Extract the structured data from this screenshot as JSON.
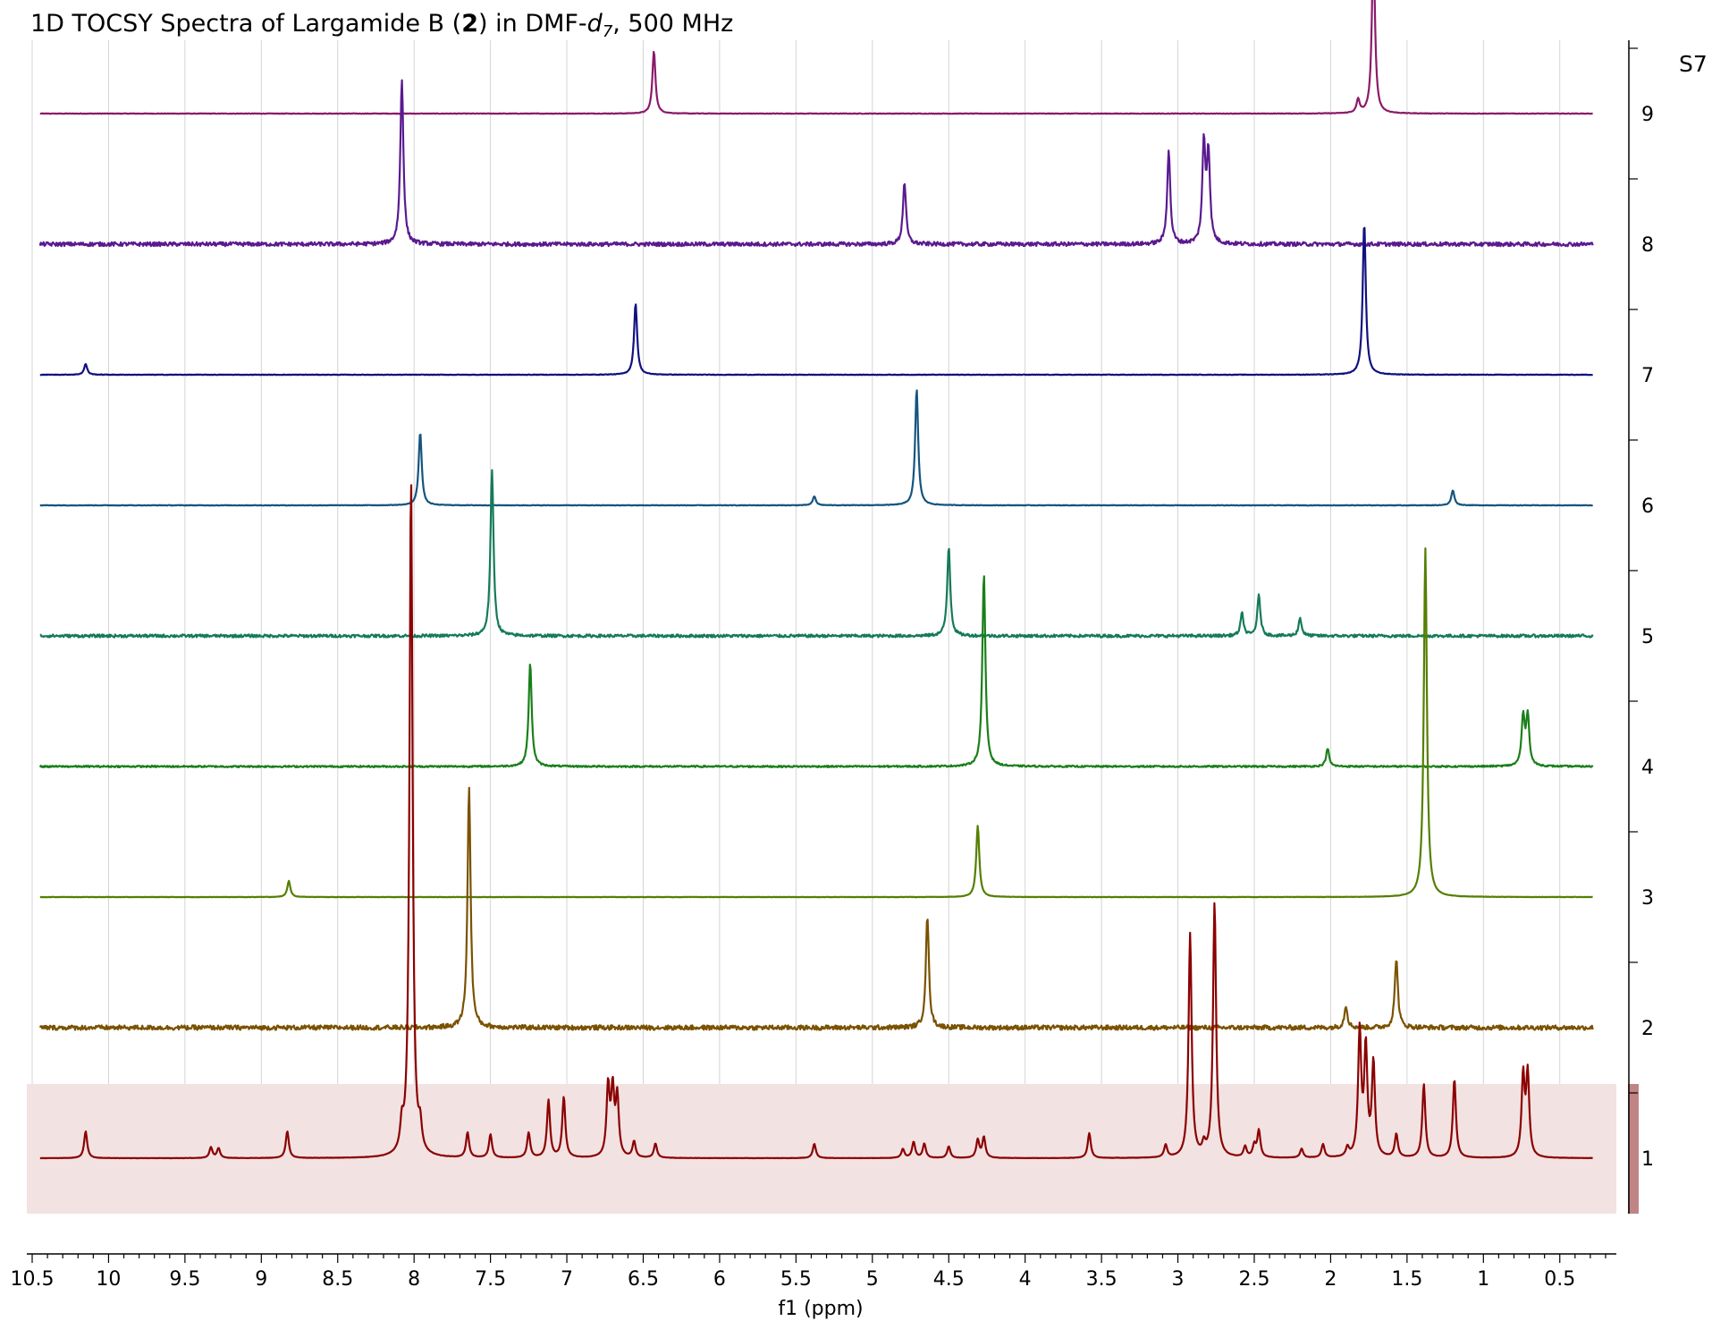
{
  "page_label": "S7",
  "chart_data": {
    "type": "line",
    "title_parts": {
      "prefix": "1D TOCSY Spectra of Largamide B (",
      "bold": "2",
      "middle": ") in DMF-",
      "italic": "d",
      "subscript": "7",
      "suffix": ", 500 MHz"
    },
    "xlabel": "f1 (ppm)",
    "x_reversed": true,
    "xlim": [
      10.5,
      0.2
    ],
    "x_ticks": [
      "10.5",
      "10",
      "9.5",
      "9",
      "8.5",
      "8",
      "7.5",
      "7",
      "6.5",
      "6",
      "5.5",
      "5",
      "4.5",
      "4",
      "3.5",
      "3",
      "2.5",
      "2",
      "1.5",
      "1",
      "0.5"
    ],
    "x_tick_values": [
      10.5,
      10,
      9.5,
      9,
      8.5,
      8,
      7.5,
      7,
      6.5,
      6,
      5.5,
      5,
      4.5,
      4,
      3.5,
      3,
      2.5,
      2,
      1.5,
      1,
      0.5
    ],
    "y_ticks": [
      "1",
      "2",
      "3",
      "4",
      "5",
      "6",
      "7",
      "8",
      "9"
    ],
    "highlight_trace": 1,
    "grid": "vertical",
    "series": [
      {
        "label": "1",
        "color": "#8b0000",
        "noise": 0.15,
        "peaks": [
          [
            10.15,
            30
          ],
          [
            9.33,
            12
          ],
          [
            9.28,
            11
          ],
          [
            8.83,
            30
          ],
          [
            8.08,
            28
          ],
          [
            8.02,
            760
          ],
          [
            7.96,
            26
          ],
          [
            7.65,
            28
          ],
          [
            7.5,
            26
          ],
          [
            7.25,
            28
          ],
          [
            7.12,
            64
          ],
          [
            7.02,
            68
          ],
          [
            6.73,
            78
          ],
          [
            6.7,
            72
          ],
          [
            6.67,
            66
          ],
          [
            6.56,
            18
          ],
          [
            6.42,
            16
          ],
          [
            5.38,
            16
          ],
          [
            4.8,
            10
          ],
          [
            4.73,
            18
          ],
          [
            4.66,
            16
          ],
          [
            4.5,
            13
          ],
          [
            4.31,
            20
          ],
          [
            4.27,
            23
          ],
          [
            3.58,
            28
          ],
          [
            3.08,
            14
          ],
          [
            2.92,
            250
          ],
          [
            2.76,
            285
          ],
          [
            2.83,
            12
          ],
          [
            2.56,
            12
          ],
          [
            2.5,
            13
          ],
          [
            2.47,
            30
          ],
          [
            2.19,
            10
          ],
          [
            2.05,
            15
          ],
          [
            1.89,
            10
          ],
          [
            1.81,
            140
          ],
          [
            1.77,
            120
          ],
          [
            1.72,
            105
          ],
          [
            1.57,
            26
          ],
          [
            1.39,
            82
          ],
          [
            1.19,
            88
          ],
          [
            0.74,
            90
          ],
          [
            0.71,
            92
          ]
        ]
      },
      {
        "label": "2",
        "color": "#7a5200",
        "noise": 2.6,
        "peaks": [
          [
            7.64,
            270
          ],
          [
            4.64,
            125
          ],
          [
            1.9,
            25
          ],
          [
            1.57,
            78
          ]
        ]
      },
      {
        "label": "3",
        "color": "#557f00",
        "noise": 0.2,
        "peaks": [
          [
            8.82,
            18
          ],
          [
            4.31,
            80
          ],
          [
            1.38,
            390
          ]
        ]
      },
      {
        "label": "4",
        "color": "#1a7f1a",
        "noise": 0.9,
        "peaks": [
          [
            7.24,
            115
          ],
          [
            4.27,
            215
          ],
          [
            2.02,
            20
          ],
          [
            0.74,
            55
          ],
          [
            0.71,
            56
          ]
        ]
      },
      {
        "label": "5",
        "color": "#157a5a",
        "noise": 1.6,
        "peaks": [
          [
            7.49,
            185
          ],
          [
            4.5,
            100
          ],
          [
            2.58,
            25
          ],
          [
            2.47,
            45
          ],
          [
            2.2,
            20
          ]
        ]
      },
      {
        "label": "6",
        "color": "#15547f",
        "noise": 0.3,
        "peaks": [
          [
            7.96,
            82
          ],
          [
            5.38,
            10
          ],
          [
            4.71,
            130
          ],
          [
            1.2,
            17
          ]
        ]
      },
      {
        "label": "7",
        "color": "#111180",
        "noise": 0.3,
        "peaks": [
          [
            10.15,
            12
          ],
          [
            6.55,
            80
          ],
          [
            1.78,
            170
          ]
        ]
      },
      {
        "label": "8",
        "color": "#5a1a8f",
        "noise": 2.2,
        "peaks": [
          [
            8.08,
            185
          ],
          [
            4.79,
            70
          ],
          [
            3.06,
            105
          ],
          [
            2.83,
            110
          ],
          [
            2.8,
            100
          ]
        ]
      },
      {
        "label": "9",
        "color": "#8b1a6a",
        "noise": 0.3,
        "peaks": [
          [
            6.43,
            70
          ],
          [
            1.82,
            15
          ],
          [
            1.72,
            190
          ]
        ]
      }
    ]
  }
}
